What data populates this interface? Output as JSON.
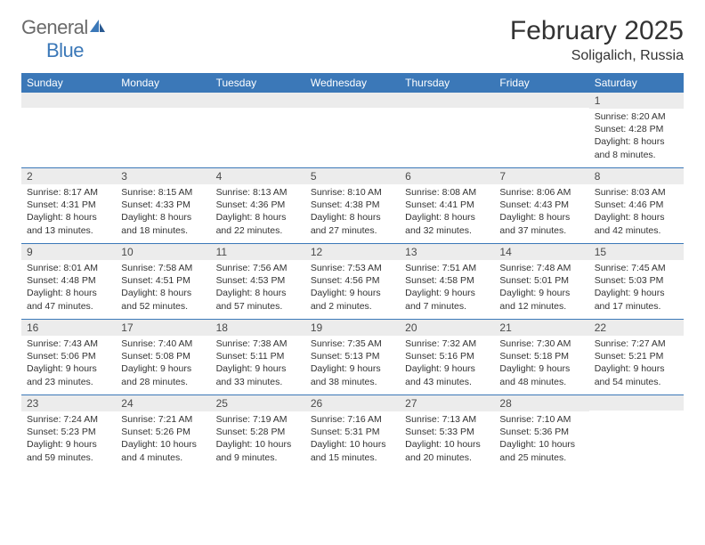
{
  "brand": {
    "name1": "General",
    "name2": "Blue"
  },
  "title": "February 2025",
  "location": "Soligalich, Russia",
  "colors": {
    "accent": "#3b78b8",
    "header_text": "#ffffff",
    "cell_num_bg": "#ececec",
    "text": "#333333",
    "logo_grey": "#6a6a6a"
  },
  "day_names": [
    "Sunday",
    "Monday",
    "Tuesday",
    "Wednesday",
    "Thursday",
    "Friday",
    "Saturday"
  ],
  "weeks": [
    [
      null,
      null,
      null,
      null,
      null,
      null,
      {
        "n": "1",
        "sr": "Sunrise: 8:20 AM",
        "ss": "Sunset: 4:28 PM",
        "dl": "Daylight: 8 hours and 8 minutes."
      }
    ],
    [
      {
        "n": "2",
        "sr": "Sunrise: 8:17 AM",
        "ss": "Sunset: 4:31 PM",
        "dl": "Daylight: 8 hours and 13 minutes."
      },
      {
        "n": "3",
        "sr": "Sunrise: 8:15 AM",
        "ss": "Sunset: 4:33 PM",
        "dl": "Daylight: 8 hours and 18 minutes."
      },
      {
        "n": "4",
        "sr": "Sunrise: 8:13 AM",
        "ss": "Sunset: 4:36 PM",
        "dl": "Daylight: 8 hours and 22 minutes."
      },
      {
        "n": "5",
        "sr": "Sunrise: 8:10 AM",
        "ss": "Sunset: 4:38 PM",
        "dl": "Daylight: 8 hours and 27 minutes."
      },
      {
        "n": "6",
        "sr": "Sunrise: 8:08 AM",
        "ss": "Sunset: 4:41 PM",
        "dl": "Daylight: 8 hours and 32 minutes."
      },
      {
        "n": "7",
        "sr": "Sunrise: 8:06 AM",
        "ss": "Sunset: 4:43 PM",
        "dl": "Daylight: 8 hours and 37 minutes."
      },
      {
        "n": "8",
        "sr": "Sunrise: 8:03 AM",
        "ss": "Sunset: 4:46 PM",
        "dl": "Daylight: 8 hours and 42 minutes."
      }
    ],
    [
      {
        "n": "9",
        "sr": "Sunrise: 8:01 AM",
        "ss": "Sunset: 4:48 PM",
        "dl": "Daylight: 8 hours and 47 minutes."
      },
      {
        "n": "10",
        "sr": "Sunrise: 7:58 AM",
        "ss": "Sunset: 4:51 PM",
        "dl": "Daylight: 8 hours and 52 minutes."
      },
      {
        "n": "11",
        "sr": "Sunrise: 7:56 AM",
        "ss": "Sunset: 4:53 PM",
        "dl": "Daylight: 8 hours and 57 minutes."
      },
      {
        "n": "12",
        "sr": "Sunrise: 7:53 AM",
        "ss": "Sunset: 4:56 PM",
        "dl": "Daylight: 9 hours and 2 minutes."
      },
      {
        "n": "13",
        "sr": "Sunrise: 7:51 AM",
        "ss": "Sunset: 4:58 PM",
        "dl": "Daylight: 9 hours and 7 minutes."
      },
      {
        "n": "14",
        "sr": "Sunrise: 7:48 AM",
        "ss": "Sunset: 5:01 PM",
        "dl": "Daylight: 9 hours and 12 minutes."
      },
      {
        "n": "15",
        "sr": "Sunrise: 7:45 AM",
        "ss": "Sunset: 5:03 PM",
        "dl": "Daylight: 9 hours and 17 minutes."
      }
    ],
    [
      {
        "n": "16",
        "sr": "Sunrise: 7:43 AM",
        "ss": "Sunset: 5:06 PM",
        "dl": "Daylight: 9 hours and 23 minutes."
      },
      {
        "n": "17",
        "sr": "Sunrise: 7:40 AM",
        "ss": "Sunset: 5:08 PM",
        "dl": "Daylight: 9 hours and 28 minutes."
      },
      {
        "n": "18",
        "sr": "Sunrise: 7:38 AM",
        "ss": "Sunset: 5:11 PM",
        "dl": "Daylight: 9 hours and 33 minutes."
      },
      {
        "n": "19",
        "sr": "Sunrise: 7:35 AM",
        "ss": "Sunset: 5:13 PM",
        "dl": "Daylight: 9 hours and 38 minutes."
      },
      {
        "n": "20",
        "sr": "Sunrise: 7:32 AM",
        "ss": "Sunset: 5:16 PM",
        "dl": "Daylight: 9 hours and 43 minutes."
      },
      {
        "n": "21",
        "sr": "Sunrise: 7:30 AM",
        "ss": "Sunset: 5:18 PM",
        "dl": "Daylight: 9 hours and 48 minutes."
      },
      {
        "n": "22",
        "sr": "Sunrise: 7:27 AM",
        "ss": "Sunset: 5:21 PM",
        "dl": "Daylight: 9 hours and 54 minutes."
      }
    ],
    [
      {
        "n": "23",
        "sr": "Sunrise: 7:24 AM",
        "ss": "Sunset: 5:23 PM",
        "dl": "Daylight: 9 hours and 59 minutes."
      },
      {
        "n": "24",
        "sr": "Sunrise: 7:21 AM",
        "ss": "Sunset: 5:26 PM",
        "dl": "Daylight: 10 hours and 4 minutes."
      },
      {
        "n": "25",
        "sr": "Sunrise: 7:19 AM",
        "ss": "Sunset: 5:28 PM",
        "dl": "Daylight: 10 hours and 9 minutes."
      },
      {
        "n": "26",
        "sr": "Sunrise: 7:16 AM",
        "ss": "Sunset: 5:31 PM",
        "dl": "Daylight: 10 hours and 15 minutes."
      },
      {
        "n": "27",
        "sr": "Sunrise: 7:13 AM",
        "ss": "Sunset: 5:33 PM",
        "dl": "Daylight: 10 hours and 20 minutes."
      },
      {
        "n": "28",
        "sr": "Sunrise: 7:10 AM",
        "ss": "Sunset: 5:36 PM",
        "dl": "Daylight: 10 hours and 25 minutes."
      },
      null
    ]
  ]
}
